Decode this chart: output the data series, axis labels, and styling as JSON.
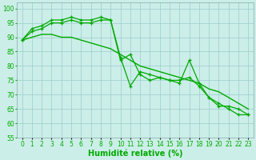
{
  "x": [
    0,
    1,
    2,
    3,
    4,
    5,
    6,
    7,
    8,
    9,
    10,
    11,
    12,
    13,
    14,
    15,
    16,
    17,
    18,
    19,
    20,
    21,
    22,
    23
  ],
  "line1": [
    89,
    93,
    94,
    96,
    96,
    97,
    96,
    96,
    97,
    96,
    82,
    84,
    77,
    75,
    76,
    75,
    75,
    76,
    73,
    69,
    66,
    66,
    65,
    63
  ],
  "line2": [
    89,
    92,
    93,
    95,
    95,
    96,
    95,
    95,
    96,
    96,
    83,
    73,
    78,
    77,
    76,
    75,
    74,
    82,
    74,
    69,
    67,
    65,
    63,
    63
  ],
  "line3": [
    89,
    90,
    91,
    91,
    90,
    90,
    89,
    88,
    87,
    86,
    84,
    82,
    80,
    79,
    78,
    77,
    76,
    75,
    74,
    72,
    71,
    69,
    67,
    65
  ],
  "ylim": [
    55,
    102
  ],
  "yticks": [
    55,
    60,
    65,
    70,
    75,
    80,
    85,
    90,
    95,
    100
  ],
  "xlim": [
    -0.5,
    23.5
  ],
  "xlabel": "Humidité relative (%)",
  "bg_color": "#cceee8",
  "grid_color": "#99cccc",
  "line_color": "#00aa00",
  "label_fontsize": 7,
  "tick_fontsize": 5.5
}
